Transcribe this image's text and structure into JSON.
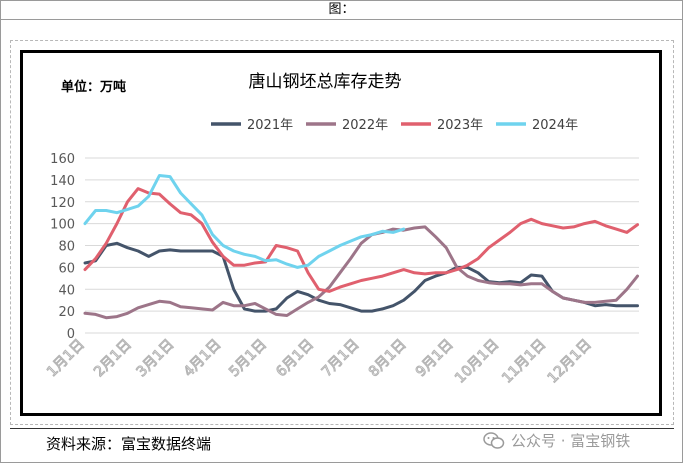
{
  "header": {
    "title": "图："
  },
  "footer": {
    "source": "资料来源：富宝数据终端",
    "watermark": "公众号 · 富宝钢铁",
    "watermark_icon": "wechat-icon"
  },
  "chart_data": {
    "type": "line",
    "title": "唐山钢坯总库存走势",
    "unit_label": "单位：万吨",
    "xlabel": "",
    "ylabel": "",
    "ylim": [
      0,
      160
    ],
    "yticks": [
      0,
      20,
      40,
      60,
      80,
      100,
      120,
      140,
      160
    ],
    "grid": "horizontal",
    "legend_position": "top",
    "x_tick_labels": [
      "1月1日",
      "2月1日",
      "3月1日",
      "4月1日",
      "5月1日",
      "6月1日",
      "7月1日",
      "8月1日",
      "9月1日",
      "10月1日",
      "11月1日",
      "12月1日"
    ],
    "x_ticks_day_of_year": [
      1,
      32,
      60,
      91,
      121,
      152,
      182,
      213,
      244,
      274,
      305,
      335
    ],
    "x_range_day_of_year": [
      1,
      366
    ],
    "series": [
      {
        "name": "2021年",
        "color": "#44546a",
        "x": [
          1,
          8,
          15,
          22,
          29,
          36,
          43,
          50,
          57,
          64,
          71,
          78,
          85,
          92,
          99,
          106,
          113,
          120,
          127,
          134,
          141,
          148,
          155,
          162,
          169,
          176,
          183,
          190,
          197,
          204,
          211,
          218,
          225,
          232,
          239,
          246,
          253,
          260,
          267,
          274,
          281,
          288,
          295,
          302,
          309,
          316,
          323,
          330,
          337,
          344,
          351,
          358,
          365
        ],
        "y": [
          64,
          66,
          80,
          82,
          78,
          75,
          70,
          75,
          76,
          75,
          75,
          75,
          75,
          70,
          40,
          22,
          20,
          20,
          22,
          32,
          38,
          35,
          30,
          27,
          26,
          23,
          20,
          20,
          22,
          25,
          30,
          38,
          48,
          52,
          55,
          60,
          60,
          55,
          47,
          46,
          47,
          46,
          53,
          52,
          38,
          32,
          30,
          28,
          25,
          26,
          25,
          25,
          25
        ]
      },
      {
        "name": "2022年",
        "color": "#9d7589",
        "x": [
          1,
          8,
          15,
          22,
          29,
          36,
          43,
          50,
          57,
          64,
          71,
          78,
          85,
          92,
          99,
          106,
          113,
          120,
          127,
          134,
          141,
          148,
          155,
          162,
          169,
          176,
          183,
          190,
          197,
          204,
          211,
          218,
          225,
          232,
          239,
          246,
          253,
          260,
          267,
          274,
          281,
          288,
          295,
          302,
          309,
          316,
          323,
          330,
          337,
          344,
          351,
          358,
          365
        ],
        "y": [
          18,
          17,
          14,
          15,
          18,
          23,
          26,
          29,
          28,
          24,
          23,
          22,
          21,
          28,
          25,
          25,
          27,
          22,
          17,
          16,
          22,
          28,
          33,
          42,
          55,
          68,
          82,
          90,
          92,
          95,
          94,
          96,
          97,
          88,
          78,
          60,
          52,
          48,
          46,
          45,
          45,
          44,
          45,
          45,
          38,
          32,
          30,
          28,
          28,
          29,
          30,
          40,
          52
        ]
      },
      {
        "name": "2023年",
        "color": "#e0606e",
        "x": [
          1,
          8,
          15,
          22,
          29,
          36,
          43,
          50,
          57,
          64,
          71,
          78,
          85,
          92,
          99,
          106,
          113,
          120,
          127,
          134,
          141,
          148,
          155,
          162,
          169,
          176,
          183,
          190,
          197,
          204,
          211,
          218,
          225,
          232,
          239,
          246,
          253,
          260,
          267,
          274,
          281,
          288,
          295,
          302,
          309,
          316,
          323,
          330,
          337,
          344,
          351,
          358,
          365
        ],
        "y": [
          58,
          68,
          82,
          100,
          120,
          132,
          128,
          127,
          118,
          110,
          108,
          100,
          83,
          70,
          62,
          62,
          64,
          65,
          80,
          78,
          75,
          55,
          40,
          38,
          42,
          45,
          48,
          50,
          52,
          55,
          58,
          55,
          54,
          55,
          55,
          58,
          62,
          68,
          78,
          85,
          92,
          100,
          104,
          100,
          98,
          96,
          97,
          100,
          102,
          98,
          95,
          92,
          99
        ]
      },
      {
        "name": "2024年",
        "color": "#6fd3ee",
        "x": [
          1,
          8,
          15,
          22,
          29,
          36,
          43,
          50,
          57,
          64,
          71,
          78,
          85,
          92,
          99,
          106,
          113,
          120,
          127,
          134,
          141,
          148,
          155,
          162,
          169,
          176,
          183,
          190,
          197,
          204,
          211
        ],
        "y": [
          100,
          112,
          112,
          110,
          113,
          116,
          125,
          144,
          143,
          128,
          118,
          108,
          90,
          80,
          75,
          72,
          70,
          66,
          67,
          63,
          60,
          62,
          70,
          75,
          80,
          84,
          88,
          90,
          93,
          92,
          95
        ]
      }
    ]
  }
}
